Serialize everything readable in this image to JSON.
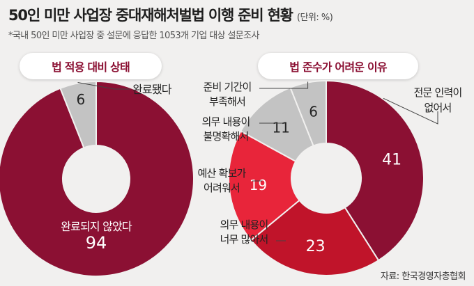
{
  "title": "50인 미만 사업장 중대재해처벌법 이행 준비 현황",
  "unit": "(단위: %)",
  "subtitle": "*국내 50인 미만 사업장 중 설문에 응답한 1053개 기업 대상 설문조사",
  "source": "자료: 한국경영자총협회",
  "chart_data": [
    {
      "type": "pie",
      "title": "법 적용 대비 상태",
      "donut": true,
      "slices": [
        {
          "label": "완료되지 않았다",
          "value": 94,
          "color": "#8b1033"
        },
        {
          "label": "완료됐다",
          "value": 6,
          "color": "#c3c3c3"
        }
      ]
    },
    {
      "type": "pie",
      "title": "법 준수가 어려운 이유",
      "donut": true,
      "slices": [
        {
          "label": "전문 인력이 없어서",
          "value": 41,
          "color": "#8b1033"
        },
        {
          "label": "의무 내용이 너무 많아서",
          "value": 23,
          "color": "#c0142a"
        },
        {
          "label": "예산 확보가 어려워서",
          "value": 19,
          "color": "#e8253a"
        },
        {
          "label": "의무 내용이 불명확해서",
          "value": 11,
          "color": "#c3c3c3"
        },
        {
          "label": "준비 기간이 부족해서",
          "value": 6,
          "color": "#c3c3c3"
        }
      ]
    }
  ]
}
